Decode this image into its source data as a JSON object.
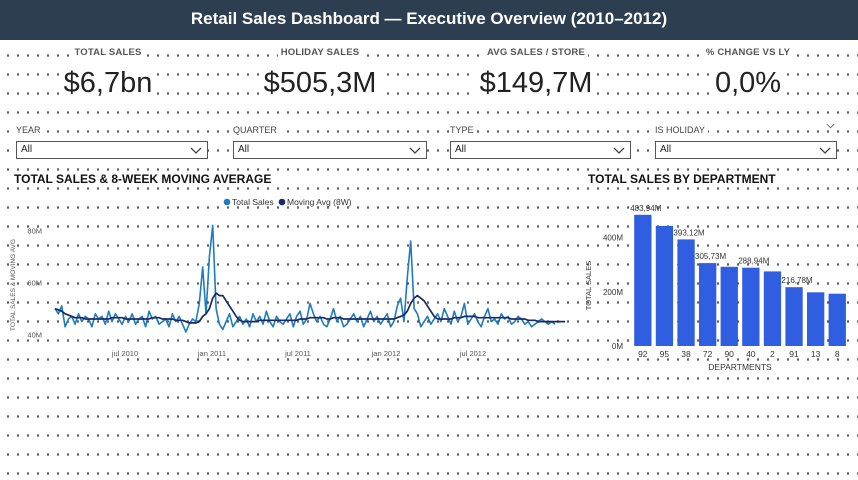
{
  "header": {
    "title": "Retail Sales Dashboard — Executive Overview (2010–2012)"
  },
  "kpis": [
    {
      "label": "TOTAL SALES",
      "value": "$6,7bn"
    },
    {
      "label": "HOLIDAY SALES",
      "value": "$505,3M"
    },
    {
      "label": "AVG SALES / STORE",
      "value": "$149,7M"
    },
    {
      "label": "% CHANGE VS LY",
      "value": "0,0%"
    }
  ],
  "slicers": [
    {
      "label": "YEAR",
      "value": "All"
    },
    {
      "label": "QUARTER",
      "value": "All"
    },
    {
      "label": "TYPE",
      "value": "All"
    },
    {
      "label": "IS HOLIDAY",
      "value": "All"
    }
  ],
  "colors": {
    "header_bg": "#2c3e50",
    "total_sales": "#1f7bbf",
    "moving_avg": "#1a2a66",
    "bar": "#2f5ee0"
  },
  "chart_data": [
    {
      "type": "line",
      "title": "TOTAL SALES & 8-WEEK MOVING AVERAGE",
      "ylabel": "TOTAL SALES & MOVING AVG",
      "x_ticks": [
        "jul 2010",
        "jan 2011",
        "jul 2011",
        "jan 2012",
        "jul 2012"
      ],
      "y_ticks": [
        "40M",
        "60M",
        "80M"
      ],
      "ylim": [
        36,
        86
      ],
      "legend_position": "top",
      "series": [
        {
          "name": "Total Sales",
          "values": [
            50,
            48,
            51,
            43,
            46,
            47,
            44,
            48,
            45,
            47,
            46,
            43,
            48,
            46,
            47,
            44,
            49,
            45,
            48,
            46,
            44,
            47,
            45,
            48,
            44,
            46,
            47,
            43,
            49,
            46,
            47,
            44,
            45,
            46,
            43,
            48,
            45,
            47,
            44,
            41,
            44,
            46,
            45,
            52,
            66,
            48,
            70,
            82,
            50,
            44,
            42,
            45,
            48,
            43,
            45,
            47,
            44,
            46,
            43,
            48,
            45,
            47,
            44,
            49,
            45,
            43,
            47,
            45,
            44,
            46,
            48,
            43,
            47,
            49,
            44,
            46,
            52,
            48,
            45,
            47,
            44,
            43,
            46,
            50,
            45,
            47,
            43,
            44,
            46,
            48,
            45,
            47,
            43,
            46,
            49,
            45,
            47,
            44,
            46,
            48,
            43,
            45,
            51,
            54,
            45,
            62,
            76,
            50,
            48,
            43,
            45,
            47,
            44,
            46,
            48,
            45,
            50,
            47,
            44,
            49,
            45,
            47,
            52,
            44,
            46,
            48,
            45,
            43,
            47,
            50,
            45,
            46,
            44,
            48,
            46,
            47,
            44,
            45,
            47,
            46,
            44,
            45,
            43,
            44,
            45,
            46,
            45,
            44,
            45,
            44
          ]
        },
        {
          "name": "Moving Avg (8W)",
          "values": [
            50,
            49.5,
            49,
            48,
            47.5,
            47,
            46.5,
            46.5,
            46.5,
            46,
            46,
            46,
            46,
            46,
            46,
            46,
            46,
            46.5,
            46.5,
            46.5,
            46.5,
            46,
            46,
            46,
            46,
            46,
            46,
            46,
            46,
            46.5,
            46.5,
            46.5,
            46,
            46,
            46,
            46,
            45.5,
            45.5,
            45.5,
            45,
            44.5,
            44.5,
            44.5,
            45,
            47,
            48,
            50,
            54,
            56,
            55,
            55,
            53,
            51,
            49,
            47,
            45.5,
            45,
            45,
            45,
            45,
            45,
            45.5,
            45.5,
            45.5,
            45.5,
            45.5,
            45.5,
            45.5,
            45.5,
            45.5,
            45.5,
            45.5,
            45.5,
            46,
            46,
            46,
            46.5,
            46.5,
            46.5,
            46.5,
            46.5,
            46,
            46,
            46.5,
            46.5,
            46.5,
            46,
            46,
            46,
            46,
            46,
            46,
            46,
            46,
            46,
            46,
            46,
            46,
            46,
            46,
            46,
            46,
            46.5,
            47,
            47.5,
            49,
            52,
            54,
            55,
            54,
            53,
            51,
            49,
            47,
            46,
            46,
            46,
            46,
            46,
            46.5,
            46.5,
            46.5,
            47,
            47,
            47,
            47,
            46.5,
            46.5,
            46.5,
            46.5,
            46.5,
            46.5,
            46.5,
            46.5,
            46.5,
            46.5,
            46,
            46,
            46,
            46,
            46,
            45.5,
            45.5,
            45.5,
            45,
            45,
            45,
            45,
            45,
            45,
            45,
            45,
            45
          ]
        }
      ]
    },
    {
      "type": "bar",
      "title": "TOTAL SALES BY DEPARTMENT",
      "xlabel": "DEPARTMENTS",
      "ylabel": "TOTAL SALES",
      "categories": [
        "92",
        "95",
        "38",
        "72",
        "90",
        "40",
        "2",
        "91",
        "13",
        "8"
      ],
      "values": [
        483.94,
        443.0,
        393.12,
        305.73,
        292.0,
        288.94,
        275.0,
        216.78,
        198.0,
        193.0
      ],
      "data_labels": [
        "483,94M",
        "",
        "393,12M",
        "305,73M",
        "",
        "288,94M",
        "",
        "216,78M",
        "",
        ""
      ],
      "y_ticks": [
        "0M",
        "200M",
        "400M"
      ],
      "ylim": [
        0,
        520
      ]
    }
  ]
}
